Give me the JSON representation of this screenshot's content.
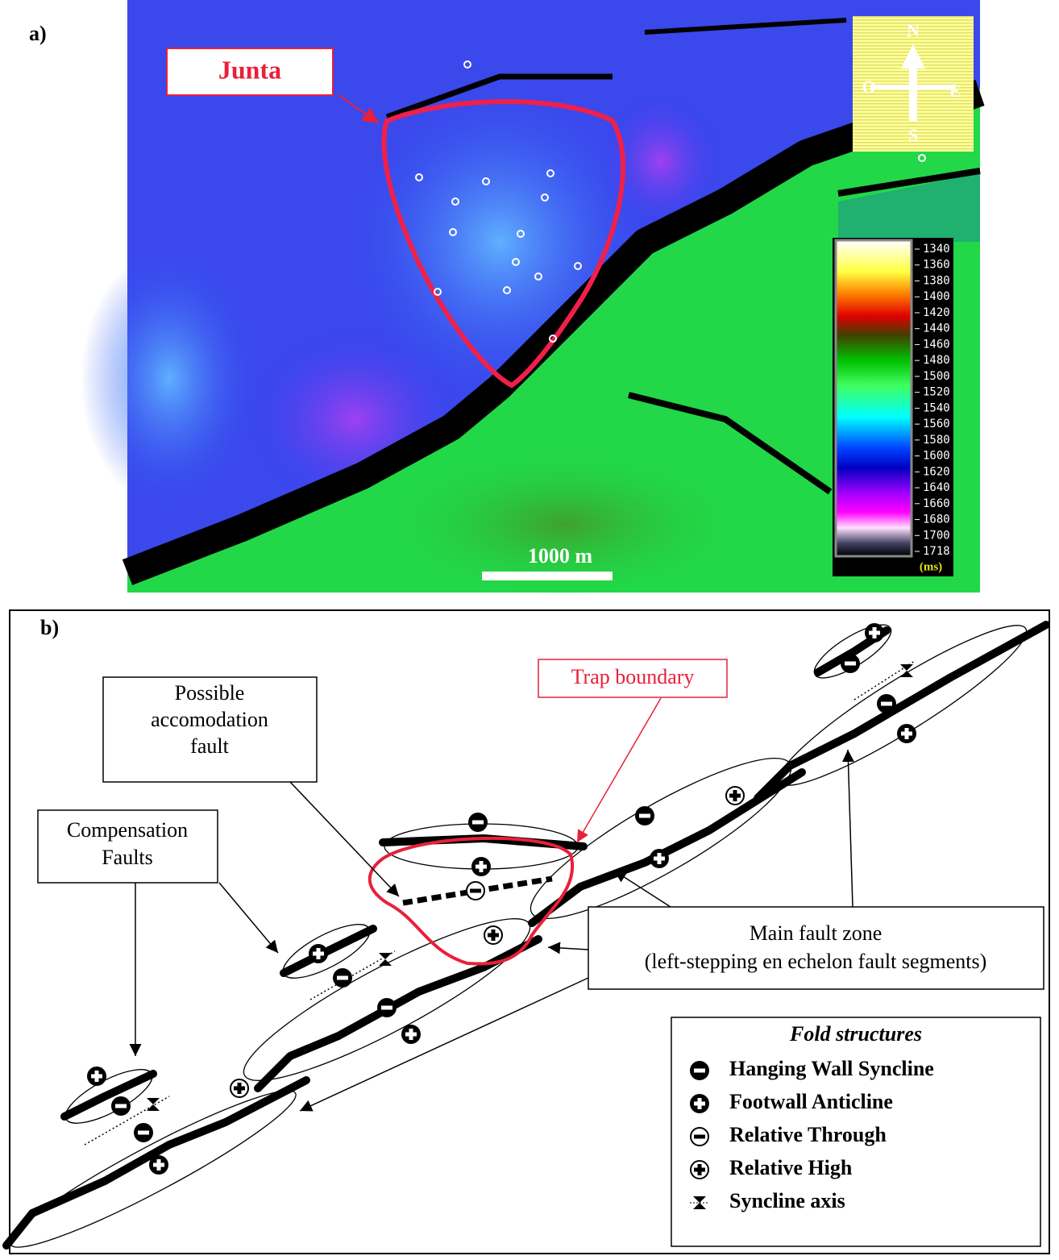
{
  "panel_a": {
    "label": "a)",
    "callout": "Junta",
    "compass": {
      "north": "N",
      "south": "S",
      "east": "E",
      "west": "O"
    },
    "colorbar": {
      "ticks": [
        1340,
        1360,
        1380,
        1400,
        1420,
        1440,
        1460,
        1480,
        1500,
        1520,
        1540,
        1560,
        1580,
        1600,
        1620,
        1640,
        1660,
        1680,
        1700,
        1718
      ],
      "unit": "(ms)"
    },
    "scale_bar": "1000 m"
  },
  "panel_b": {
    "label": "b)",
    "accommodation_fault": [
      "Possible",
      "accomodation",
      "fault"
    ],
    "compensation_faults": [
      "Compensation",
      "Faults"
    ],
    "trap_boundary": "Trap boundary",
    "main_fault": [
      "Main fault zone",
      "(left-stepping en echelon fault segments)"
    ],
    "legend": {
      "title": "Fold structures",
      "items": [
        "Hanging Wall Syncline",
        "Footwall Anticline",
        "Relative Through",
        "Relative High",
        "Syncline axis"
      ]
    }
  }
}
